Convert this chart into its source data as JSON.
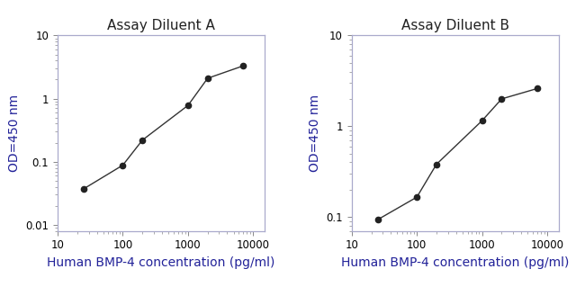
{
  "panel_A": {
    "title": "Assay Diluent A",
    "x": [
      25,
      100,
      200,
      1000,
      2000,
      7000
    ],
    "y": [
      0.037,
      0.088,
      0.22,
      0.78,
      2.1,
      3.3
    ]
  },
  "panel_B": {
    "title": "Assay Diluent B",
    "x": [
      25,
      100,
      200,
      1000,
      2000,
      7000
    ],
    "y": [
      0.093,
      0.165,
      0.38,
      1.15,
      2.0,
      2.6
    ]
  },
  "xlabel": "Human BMP-4 concentration (pg/ml)",
  "ylabel": "OD=450 nm",
  "xlim": [
    15,
    15000
  ],
  "ylim_A": [
    0.008,
    10
  ],
  "ylim_B": [
    0.07,
    10
  ],
  "line_color": "#333333",
  "marker_color": "#222222",
  "title_color": "#222222",
  "label_color": "#222299",
  "background_color": "#ffffff",
  "spine_color": "#aaaacc",
  "title_fontsize": 11,
  "label_fontsize": 10,
  "tick_fontsize": 8.5,
  "yticks_A": [
    0.01,
    0.1,
    1,
    10
  ],
  "yticks_A_labels": [
    "0.01",
    "0.1",
    "1",
    "10"
  ],
  "yticks_B": [
    0.1,
    1,
    10
  ],
  "yticks_B_labels": [
    "0.1",
    "1",
    "10"
  ],
  "xticks": [
    10,
    100,
    1000,
    10000
  ],
  "xtick_labels": [
    "10",
    "100",
    "1000",
    "10000"
  ]
}
